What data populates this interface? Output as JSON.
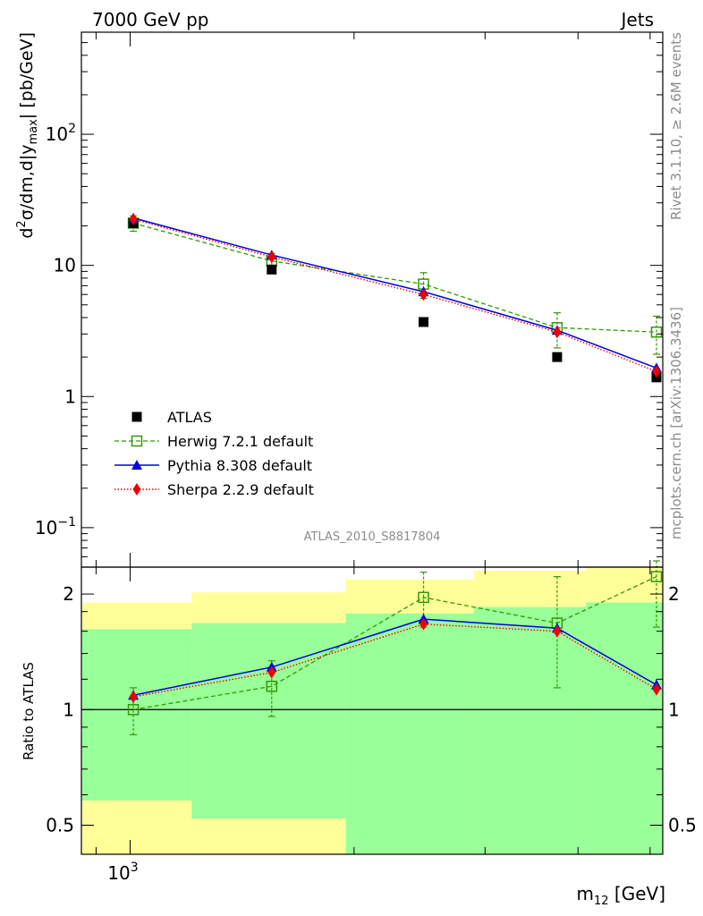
{
  "header": {
    "left": "7000 GeV pp",
    "right": "Jets"
  },
  "side_text": {
    "top": "Rivet 3.1.10, ≥ 2.6M events",
    "bottom": "mcplots.cern.ch [arXiv:1306.3436]"
  },
  "analysis_id": "ATLAS_2010_S8817804",
  "colors": {
    "band_inner": "#99ff99",
    "band_outer": "#ffff99",
    "herwig": "#339900",
    "pythia": "#0000dd",
    "sherpa": "#ee0000",
    "atlas": "#000000"
  },
  "chart_data": [
    {
      "type": "scatter",
      "panel": "main",
      "ylabel_main": "d",
      "ylabel_sup": "2",
      "ylabel_mid": "σ/dm,d|y",
      "ylabel_sub": "max",
      "ylabel_end": "| [pb/GeV]",
      "yscale": "log",
      "xscale": "log",
      "xlim": [
        860,
        5200
      ],
      "ylim": [
        0.05,
        600
      ],
      "y_ticks": [
        {
          "value": 0.1,
          "mant": "10",
          "exp": "−1"
        },
        {
          "value": 1,
          "mant": "1",
          "exp": ""
        },
        {
          "value": 10,
          "mant": "10",
          "exp": ""
        },
        {
          "value": 100,
          "mant": "10",
          "exp": "2"
        }
      ],
      "legend_position": "middle-left",
      "series": [
        {
          "name": "ATLAS",
          "key": "atlas",
          "x": [
            1010,
            1550,
            2480,
            3750,
            5100
          ],
          "y": [
            21.0,
            9.3,
            3.7,
            2.0,
            1.4
          ]
        },
        {
          "name": "Herwig 7.2.1 default",
          "key": "herwig",
          "x": [
            1010,
            1550,
            2480,
            3750,
            5100
          ],
          "y": [
            21.0,
            10.8,
            7.2,
            3.35,
            3.1
          ],
          "err_lo": [
            2.8,
            1.5,
            1.6,
            1.0,
            1.0
          ],
          "err_hi": [
            2.8,
            1.5,
            1.6,
            1.0,
            1.0
          ]
        },
        {
          "name": "Pythia 8.308 default",
          "key": "pythia",
          "x": [
            1010,
            1550,
            2480,
            3750,
            5100
          ],
          "y": [
            23.0,
            12.0,
            6.3,
            3.2,
            1.65
          ],
          "err_lo": [
            0.5,
            0.3,
            0.2,
            0.15,
            0.1
          ],
          "err_hi": [
            0.5,
            0.3,
            0.2,
            0.15,
            0.1
          ]
        },
        {
          "name": "Sherpa 2.2.9 default",
          "key": "sherpa",
          "x": [
            1010,
            1550,
            2480,
            3750,
            5100
          ],
          "y": [
            22.5,
            11.6,
            6.0,
            3.1,
            1.55
          ],
          "err_lo": [
            0.6,
            0.3,
            0.3,
            0.15,
            0.1
          ],
          "err_hi": [
            0.6,
            0.3,
            0.3,
            0.15,
            0.1
          ]
        }
      ]
    },
    {
      "type": "scatter",
      "panel": "ratio",
      "ylabel": "Ratio to ATLAS",
      "xlabel_main": "m",
      "xlabel_sub": "12",
      "xlabel_end": " [GeV]",
      "x_ticks": [
        {
          "value": 1000,
          "mant": "10",
          "exp": "3"
        }
      ],
      "yscale": "log",
      "xscale": "log",
      "xlim": [
        860,
        5200
      ],
      "ylim": [
        0.42,
        2.35
      ],
      "y_ticks": [
        {
          "value": 0.5,
          "label": "0.5"
        },
        {
          "value": 1,
          "label": "1"
        },
        {
          "value": 2,
          "label": "2"
        }
      ],
      "reference_line": 1,
      "bands": [
        {
          "xlo": 860,
          "xhi": 1210,
          "inner_lo": 0.58,
          "inner_hi": 1.62,
          "outer_lo": 0.42,
          "outer_hi": 1.9
        },
        {
          "xlo": 1210,
          "xhi": 1950,
          "inner_lo": 0.52,
          "inner_hi": 1.68,
          "outer_lo": 0.42,
          "outer_hi": 2.02
        },
        {
          "xlo": 1950,
          "xhi": 2900,
          "inner_lo": 0.42,
          "inner_hi": 1.78,
          "outer_lo": 0.42,
          "outer_hi": 2.18
        },
        {
          "xlo": 2900,
          "xhi": 4100,
          "inner_lo": 0.42,
          "inner_hi": 1.85,
          "outer_lo": 0.42,
          "outer_hi": 2.3
        },
        {
          "xlo": 4100,
          "xhi": 5200,
          "inner_lo": 0.42,
          "inner_hi": 1.9,
          "outer_lo": 0.42,
          "outer_hi": 2.35
        }
      ],
      "series": [
        {
          "key": "herwig",
          "x": [
            1010,
            1550,
            2480,
            3750,
            5100
          ],
          "y": [
            1.0,
            1.15,
            1.96,
            1.68,
            2.22
          ],
          "err_lo": [
            0.14,
            0.19,
            0.32,
            0.54,
            0.58
          ],
          "err_hi": [
            0.14,
            0.19,
            0.32,
            0.54,
            0.22
          ]
        },
        {
          "key": "pythia",
          "x": [
            1010,
            1550,
            2480,
            3750,
            5100
          ],
          "y": [
            1.09,
            1.29,
            1.72,
            1.63,
            1.16
          ],
          "err_lo": [
            0.03,
            0.03,
            0.04,
            0.04,
            0.04
          ],
          "err_hi": [
            0.03,
            0.03,
            0.04,
            0.04,
            0.04
          ]
        },
        {
          "key": "sherpa",
          "x": [
            1010,
            1550,
            2480,
            3750,
            5100
          ],
          "y": [
            1.08,
            1.25,
            1.67,
            1.6,
            1.13
          ],
          "err_lo": [
            0.03,
            0.03,
            0.04,
            0.04,
            0.04
          ],
          "err_hi": [
            0.03,
            0.03,
            0.04,
            0.04,
            0.04
          ]
        }
      ]
    }
  ]
}
